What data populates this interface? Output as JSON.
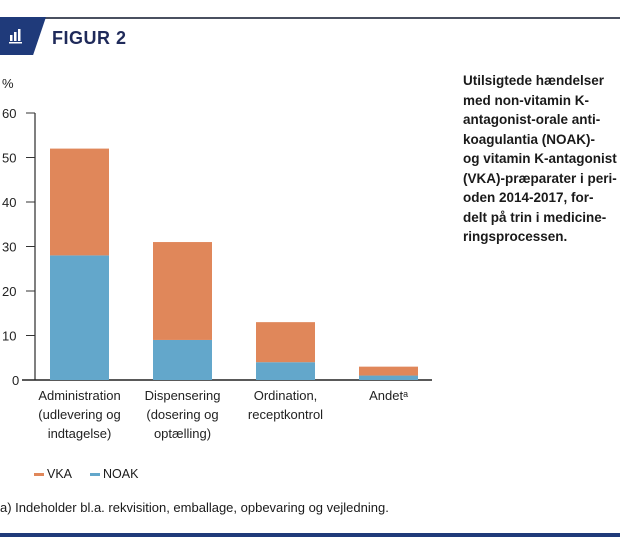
{
  "header": {
    "figure_label": "FIGUR 2",
    "icon": "bar-chart-icon",
    "brand_color": "#1f3a7a"
  },
  "caption": {
    "lines": [
      "Utilsigtede hændelser",
      "med non-vitamin K-",
      "antagonist-orale anti-",
      "koagulantia (NOAK)-",
      "og vitamin K-antagonist",
      "(VKA)-præparater i peri-",
      "oden 2014-2017, for-",
      "delt på trin i medicine-",
      "ringsprocessen."
    ]
  },
  "chart_data": {
    "type": "bar",
    "stacked": true,
    "title": "",
    "xlabel": "",
    "ylabel": "%",
    "ylim": [
      0,
      60
    ],
    "yticks": [
      0,
      10,
      20,
      30,
      40,
      50,
      60
    ],
    "grid": false,
    "legend_position": "bottom-left",
    "categories": [
      [
        "Administration",
        "(udlevering og",
        "indtagelse)"
      ],
      [
        "Dispensering",
        "(dosering og",
        "optælling)"
      ],
      [
        "Ordination,",
        "receptkontrol"
      ],
      [
        "Andetᵃ"
      ]
    ],
    "series": [
      {
        "name": "NOAK",
        "color": "#63a7cb",
        "values": [
          28,
          9,
          4,
          1
        ]
      },
      {
        "name": "VKA",
        "color": "#e0875a",
        "values": [
          24,
          22,
          9,
          2
        ]
      }
    ],
    "legend": [
      {
        "name": "VKA",
        "color": "#e0875a"
      },
      {
        "name": "NOAK",
        "color": "#63a7cb"
      }
    ]
  },
  "footnote": "a) Indeholder bl.a. rekvisition, emballage, opbevaring og vejledning."
}
